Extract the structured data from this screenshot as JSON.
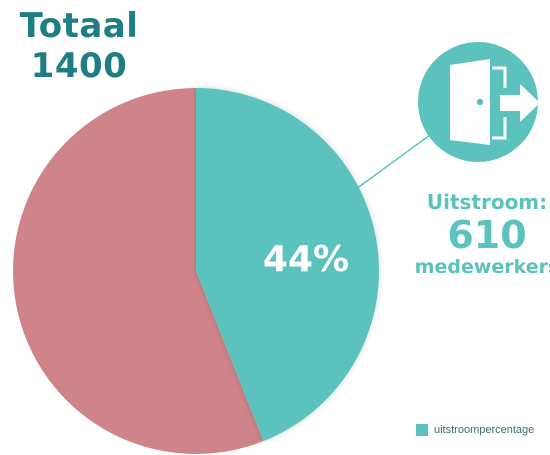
{
  "header": {
    "total_label": "Totaal",
    "total_value": "1400"
  },
  "outflow": {
    "label": "Uitstroom:",
    "value": "610",
    "unit": "medewerkers"
  },
  "legend": {
    "label": "uitstroompercentage"
  },
  "colors": {
    "teal": "#5bc2bd",
    "rose": "#cf8489",
    "title": "#1f7d84"
  },
  "icons": {
    "badge": "door-exit-icon"
  },
  "chart_data": {
    "type": "pie",
    "title": "Totaal 1400",
    "slices": [
      {
        "label": "Uitstroom",
        "value": 44,
        "color": "#5bc2bd",
        "display": "44%"
      },
      {
        "label": "",
        "value": 56,
        "color": "#cf8489",
        "display": ""
      }
    ],
    "legend": [
      "uitstroompercentage"
    ],
    "legend_position": "bottom-right"
  }
}
